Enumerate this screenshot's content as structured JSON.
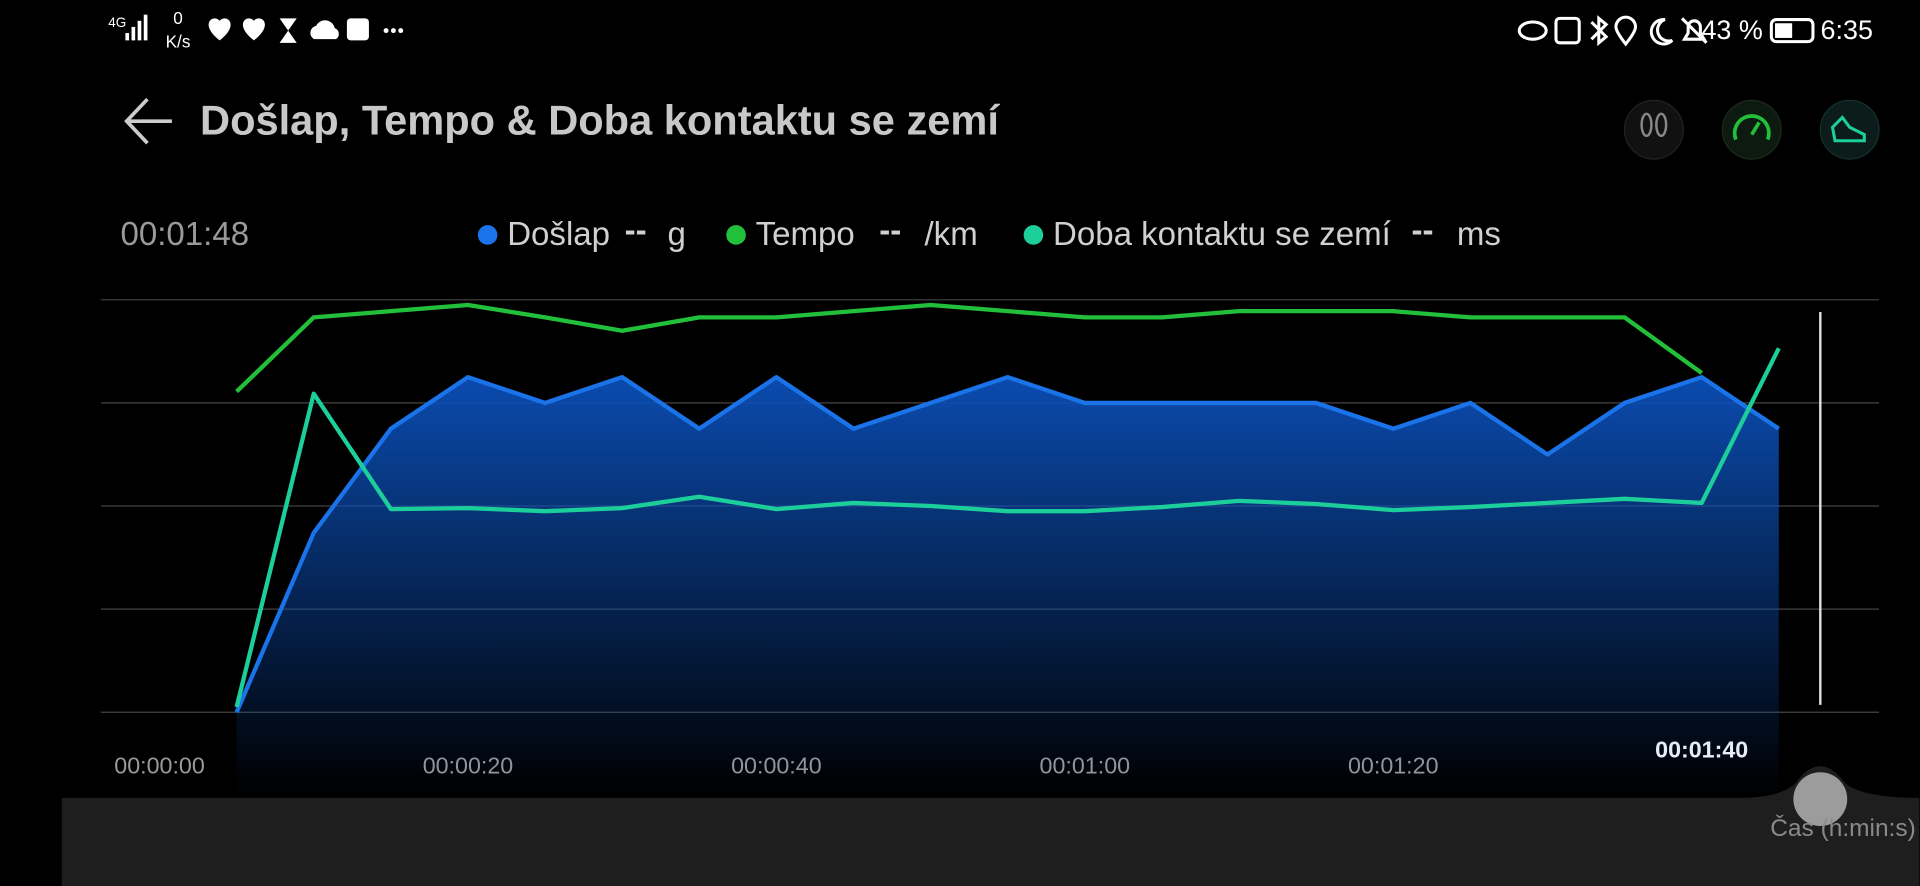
{
  "status_bar": {
    "network": "4G",
    "speed_value": "0",
    "speed_unit": "K/s",
    "battery": "43 %",
    "time": "6:35"
  },
  "header": {
    "title": "Došlap, Tempo  & Doba kontaktu se zemí"
  },
  "chart_data": {
    "type": "line",
    "timestamp": "00:01:48",
    "x_label": "Čas (h:min:s)",
    "x": [
      5,
      10,
      15,
      20,
      25,
      30,
      35,
      40,
      45,
      50,
      55,
      60,
      65,
      70,
      75,
      80,
      85,
      90,
      95,
      100,
      105
    ],
    "series": [
      {
        "name": "Došlap",
        "reading": "--",
        "unit": "g",
        "color": "#1a73e8",
        "area": true,
        "values": [
          0,
          1.74,
          2.75,
          3.25,
          3.0,
          3.25,
          2.75,
          3.25,
          2.75,
          3.0,
          3.25,
          3.0,
          3.0,
          3.0,
          3.0,
          2.75,
          3.0,
          2.5,
          3.0,
          3.25,
          2.75
        ]
      },
      {
        "name": "Tempo ",
        "reading": "--",
        "unit": "/km",
        "color": "#22c03a",
        "area": false,
        "values": [
          3.11,
          3.83,
          3.89,
          3.95,
          3.83,
          3.7,
          3.83,
          3.83,
          3.89,
          3.95,
          3.89,
          3.83,
          3.83,
          3.89,
          3.89,
          3.89,
          3.83,
          3.83,
          3.83,
          3.29,
          null
        ]
      },
      {
        "name": "Doba kontaktu se zemí",
        "reading": "--",
        "unit": "ms",
        "color": "#1ccf9a",
        "area": false,
        "values": [
          0.05,
          3.09,
          1.97,
          1.98,
          1.95,
          1.98,
          2.09,
          1.97,
          2.03,
          2.0,
          1.95,
          1.95,
          1.99,
          2.05,
          2.02,
          1.96,
          1.99,
          2.03,
          2.07,
          2.03,
          3.53
        ]
      }
    ],
    "xlim": [
      -3.8,
      111.5
    ],
    "xticks": [
      {
        "value": 0,
        "label": "00:00:00"
      },
      {
        "value": 20,
        "label": "00:00:20"
      },
      {
        "value": 40,
        "label": "00:00:40"
      },
      {
        "value": 60,
        "label": "00:01:00"
      },
      {
        "value": 80,
        "label": "00:01:20"
      },
      {
        "value": 100,
        "label": "00:01:40"
      }
    ],
    "ylim": [
      0,
      4
    ],
    "yticks": [
      0,
      1,
      2,
      3,
      4
    ],
    "grid": true
  }
}
